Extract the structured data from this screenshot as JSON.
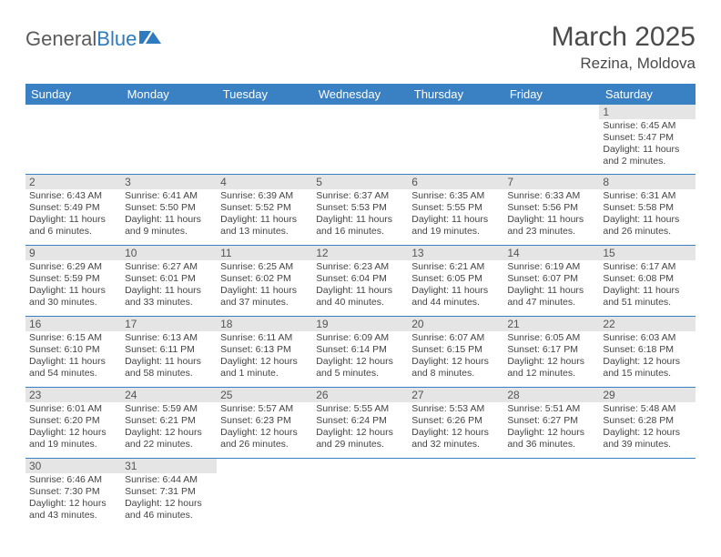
{
  "logo": {
    "textGray": "General",
    "textBlue": "Blue"
  },
  "title": "March 2025",
  "location": "Rezina, Moldova",
  "dayHeaders": [
    "Sunday",
    "Monday",
    "Tuesday",
    "Wednesday",
    "Thursday",
    "Friday",
    "Saturday"
  ],
  "colors": {
    "headerBg": "#3a81c4",
    "headerText": "#ffffff",
    "dayNumBg": "#e5e5e5",
    "border": "#3a81c4",
    "logoGray": "#5a5a5a",
    "logoBlue": "#2f7bbf",
    "bodyText": "#444444"
  },
  "weeks": [
    [
      null,
      null,
      null,
      null,
      null,
      null,
      {
        "n": "1",
        "sr": "6:45 AM",
        "ss": "5:47 PM",
        "dl": "11 hours and 2 minutes."
      }
    ],
    [
      {
        "n": "2",
        "sr": "6:43 AM",
        "ss": "5:49 PM",
        "dl": "11 hours and 6 minutes."
      },
      {
        "n": "3",
        "sr": "6:41 AM",
        "ss": "5:50 PM",
        "dl": "11 hours and 9 minutes."
      },
      {
        "n": "4",
        "sr": "6:39 AM",
        "ss": "5:52 PM",
        "dl": "11 hours and 13 minutes."
      },
      {
        "n": "5",
        "sr": "6:37 AM",
        "ss": "5:53 PM",
        "dl": "11 hours and 16 minutes."
      },
      {
        "n": "6",
        "sr": "6:35 AM",
        "ss": "5:55 PM",
        "dl": "11 hours and 19 minutes."
      },
      {
        "n": "7",
        "sr": "6:33 AM",
        "ss": "5:56 PM",
        "dl": "11 hours and 23 minutes."
      },
      {
        "n": "8",
        "sr": "6:31 AM",
        "ss": "5:58 PM",
        "dl": "11 hours and 26 minutes."
      }
    ],
    [
      {
        "n": "9",
        "sr": "6:29 AM",
        "ss": "5:59 PM",
        "dl": "11 hours and 30 minutes."
      },
      {
        "n": "10",
        "sr": "6:27 AM",
        "ss": "6:01 PM",
        "dl": "11 hours and 33 minutes."
      },
      {
        "n": "11",
        "sr": "6:25 AM",
        "ss": "6:02 PM",
        "dl": "11 hours and 37 minutes."
      },
      {
        "n": "12",
        "sr": "6:23 AM",
        "ss": "6:04 PM",
        "dl": "11 hours and 40 minutes."
      },
      {
        "n": "13",
        "sr": "6:21 AM",
        "ss": "6:05 PM",
        "dl": "11 hours and 44 minutes."
      },
      {
        "n": "14",
        "sr": "6:19 AM",
        "ss": "6:07 PM",
        "dl": "11 hours and 47 minutes."
      },
      {
        "n": "15",
        "sr": "6:17 AM",
        "ss": "6:08 PM",
        "dl": "11 hours and 51 minutes."
      }
    ],
    [
      {
        "n": "16",
        "sr": "6:15 AM",
        "ss": "6:10 PM",
        "dl": "11 hours and 54 minutes."
      },
      {
        "n": "17",
        "sr": "6:13 AM",
        "ss": "6:11 PM",
        "dl": "11 hours and 58 minutes."
      },
      {
        "n": "18",
        "sr": "6:11 AM",
        "ss": "6:13 PM",
        "dl": "12 hours and 1 minute."
      },
      {
        "n": "19",
        "sr": "6:09 AM",
        "ss": "6:14 PM",
        "dl": "12 hours and 5 minutes."
      },
      {
        "n": "20",
        "sr": "6:07 AM",
        "ss": "6:15 PM",
        "dl": "12 hours and 8 minutes."
      },
      {
        "n": "21",
        "sr": "6:05 AM",
        "ss": "6:17 PM",
        "dl": "12 hours and 12 minutes."
      },
      {
        "n": "22",
        "sr": "6:03 AM",
        "ss": "6:18 PM",
        "dl": "12 hours and 15 minutes."
      }
    ],
    [
      {
        "n": "23",
        "sr": "6:01 AM",
        "ss": "6:20 PM",
        "dl": "12 hours and 19 minutes."
      },
      {
        "n": "24",
        "sr": "5:59 AM",
        "ss": "6:21 PM",
        "dl": "12 hours and 22 minutes."
      },
      {
        "n": "25",
        "sr": "5:57 AM",
        "ss": "6:23 PM",
        "dl": "12 hours and 26 minutes."
      },
      {
        "n": "26",
        "sr": "5:55 AM",
        "ss": "6:24 PM",
        "dl": "12 hours and 29 minutes."
      },
      {
        "n": "27",
        "sr": "5:53 AM",
        "ss": "6:26 PM",
        "dl": "12 hours and 32 minutes."
      },
      {
        "n": "28",
        "sr": "5:51 AM",
        "ss": "6:27 PM",
        "dl": "12 hours and 36 minutes."
      },
      {
        "n": "29",
        "sr": "5:48 AM",
        "ss": "6:28 PM",
        "dl": "12 hours and 39 minutes."
      }
    ],
    [
      {
        "n": "30",
        "sr": "6:46 AM",
        "ss": "7:30 PM",
        "dl": "12 hours and 43 minutes."
      },
      {
        "n": "31",
        "sr": "6:44 AM",
        "ss": "7:31 PM",
        "dl": "12 hours and 46 minutes."
      },
      null,
      null,
      null,
      null,
      null
    ]
  ],
  "labels": {
    "sunrise": "Sunrise:",
    "sunset": "Sunset:",
    "daylight": "Daylight:"
  }
}
